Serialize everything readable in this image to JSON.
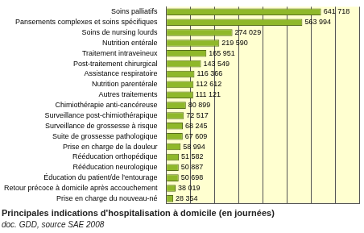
{
  "chart_data": {
    "type": "bar",
    "orientation": "horizontal",
    "title": "Principales indications d'hospitalisation à domicile (en journées)",
    "subtitle": "doc. GDD, source SAE 2008",
    "categories": [
      "Soins palliatifs",
      "Pansements complexes et soins spécifiques",
      "Soins de nursing lourds",
      "Nutrition entérale",
      "Traitement intraveineux",
      "Post-traitement chirurgical",
      "Assistance respiratoire",
      "Nutrition parentérale",
      "Autres traitements",
      "Chimiothérapie anti-cancéreuse",
      "Surveillance post-chimiothérapique",
      "Surveillance de grossesse à risque",
      "Suite de grossesse pathologique",
      "Prise en charge de la douleur",
      "Rééducation orthopédique",
      "Rééducation neurologique",
      "Éducation du patient/de l'entourage",
      "Retour précoce à domicile après accouchement",
      "Prise en charge du nouveau-né"
    ],
    "values": [
      641718,
      563994,
      274029,
      219590,
      165951,
      143549,
      116366,
      112612,
      111121,
      80899,
      72517,
      68245,
      67609,
      58994,
      51582,
      50887,
      50698,
      38019,
      28354
    ],
    "value_labels": [
      "641 718",
      "563 994",
      "274 029",
      "219 590",
      "165 951",
      "143 549",
      "116 366",
      "112 612",
      "111 121",
      "80 899",
      "72 517",
      "68 245",
      "67 609",
      "58 994",
      "51 582",
      "50 887",
      "50 698",
      "38 019",
      "28 354"
    ],
    "data_labels": true,
    "color": "#8fb82a",
    "xlim": [
      0,
      800000
    ],
    "xticks": [
      0,
      100000,
      200000,
      300000,
      400000,
      500000,
      600000,
      700000,
      800000
    ],
    "tick_labels": "y",
    "grid": true
  }
}
